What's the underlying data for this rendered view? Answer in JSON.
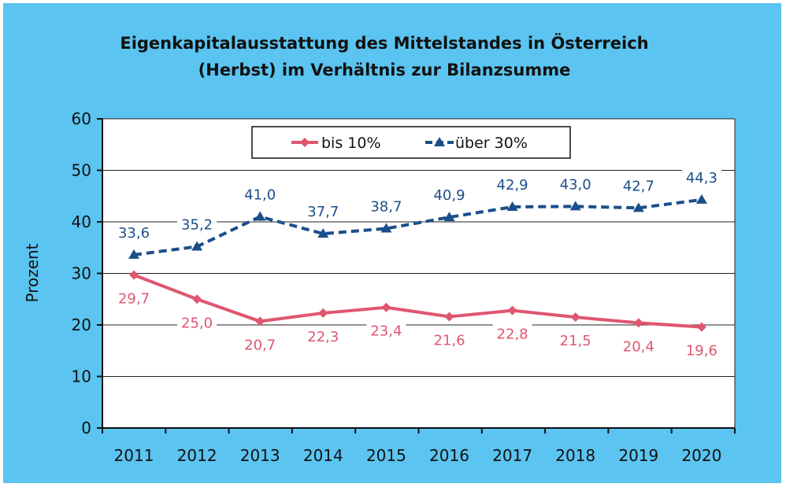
{
  "colors": {
    "background": "#5BC4F0",
    "series1": "#E0566F",
    "series2": "#1B4F8A"
  },
  "chart_data": {
    "type": "line",
    "title_line1": "Eigenkapitalausstattung des Mittelstandes in Österreich",
    "title_line2": "(Herbst) im Verhältnis zur Bilanzsumme",
    "xlabel": "",
    "ylabel": "Prozent",
    "ylim": [
      0,
      60
    ],
    "yticks": [
      "0",
      "10",
      "20",
      "30",
      "40",
      "50",
      "60"
    ],
    "categories": [
      "2011",
      "2012",
      "2013",
      "2014",
      "2015",
      "2016",
      "2017",
      "2018",
      "2019",
      "2020"
    ],
    "grid": "horizontal",
    "legend_position": "top-center",
    "series": [
      {
        "name": "bis 10%",
        "values": [
          29.7,
          25.0,
          20.7,
          22.3,
          23.4,
          21.6,
          22.8,
          21.5,
          20.4,
          19.6
        ],
        "labels": [
          "29,7",
          "25,0",
          "20,7",
          "22,3",
          "23,4",
          "21,6",
          "22,8",
          "21,5",
          "20,4",
          "19,6"
        ],
        "marker": "diamond",
        "line": "solid"
      },
      {
        "name": "über 30%",
        "values": [
          33.6,
          35.2,
          41.0,
          37.7,
          38.7,
          40.9,
          42.9,
          43.0,
          42.7,
          44.3
        ],
        "labels": [
          "33,6",
          "35,2",
          "41,0",
          "37,7",
          "38,7",
          "40,9",
          "42,9",
          "43,0",
          "42,7",
          "44,3"
        ],
        "marker": "triangle",
        "line": "dashed"
      }
    ]
  }
}
